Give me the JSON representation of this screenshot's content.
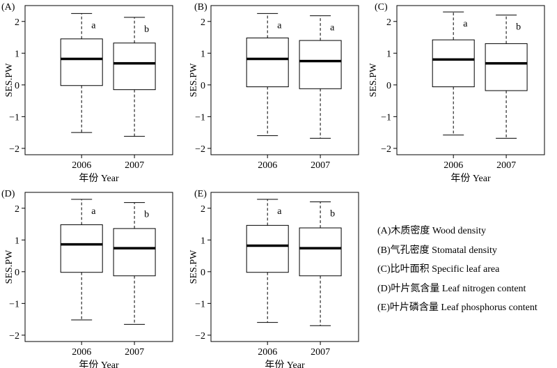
{
  "figure": {
    "legend": [
      "(A)木质密度 Wood density",
      "(B)气孔密度 Stomatal density",
      "(C)比叶面积  Specific leaf area",
      "(D)叶片氮含量 Leaf nitrogen content",
      "(E)叶片磷含量 Leaf phosphorus content"
    ]
  },
  "chart_data": [
    {
      "type": "box",
      "panel_label": "(A)",
      "ylabel": "SES.PW",
      "xlabel": "年份 Year",
      "categories": [
        "2006",
        "2007"
      ],
      "ylim": [
        -2.2,
        2.5
      ],
      "yticks": [
        -2,
        -1,
        0,
        1,
        2
      ],
      "boxes": [
        {
          "category": "2006",
          "whisker_low": -1.5,
          "q1": -0.02,
          "median": 0.82,
          "q3": 1.45,
          "whisker_high": 2.25,
          "letter": "a"
        },
        {
          "category": "2007",
          "whisker_low": -1.62,
          "q1": -0.15,
          "median": 0.68,
          "q3": 1.32,
          "whisker_high": 2.13,
          "letter": "b"
        }
      ]
    },
    {
      "type": "box",
      "panel_label": "(B)",
      "ylabel": "SES.PW",
      "xlabel": "",
      "categories": [
        "2006",
        "2007"
      ],
      "ylim": [
        -2.2,
        2.5
      ],
      "yticks": [
        -2,
        -1,
        0,
        1,
        2
      ],
      "boxes": [
        {
          "category": "2006",
          "whisker_low": -1.6,
          "q1": -0.06,
          "median": 0.82,
          "q3": 1.48,
          "whisker_high": 2.25,
          "letter": "a"
        },
        {
          "category": "2007",
          "whisker_low": -1.68,
          "q1": -0.12,
          "median": 0.75,
          "q3": 1.4,
          "whisker_high": 2.18,
          "letter": "a"
        }
      ]
    },
    {
      "type": "box",
      "panel_label": "(C)",
      "ylabel": "SES.PW",
      "xlabel": "年份 Year",
      "categories": [
        "2006",
        "2007"
      ],
      "ylim": [
        -2.2,
        2.5
      ],
      "yticks": [
        -2,
        -1,
        0,
        1,
        2
      ],
      "boxes": [
        {
          "category": "2006",
          "whisker_low": -1.58,
          "q1": -0.06,
          "median": 0.8,
          "q3": 1.42,
          "whisker_high": 2.3,
          "letter": "a"
        },
        {
          "category": "2007",
          "whisker_low": -1.68,
          "q1": -0.18,
          "median": 0.68,
          "q3": 1.3,
          "whisker_high": 2.2,
          "letter": "b"
        }
      ]
    },
    {
      "type": "box",
      "panel_label": "(D)",
      "ylabel": "SES.PW",
      "xlabel": "年份 Year",
      "categories": [
        "2006",
        "2007"
      ],
      "ylim": [
        -2.2,
        2.5
      ],
      "yticks": [
        -2,
        -1,
        0,
        1,
        2
      ],
      "boxes": [
        {
          "category": "2006",
          "whisker_low": -1.52,
          "q1": -0.02,
          "median": 0.86,
          "q3": 1.48,
          "whisker_high": 2.28,
          "letter": "a"
        },
        {
          "category": "2007",
          "whisker_low": -1.66,
          "q1": -0.13,
          "median": 0.74,
          "q3": 1.36,
          "whisker_high": 2.18,
          "letter": "b"
        }
      ]
    },
    {
      "type": "box",
      "panel_label": "(E)",
      "ylabel": "SES.PW",
      "xlabel": "年份 Year",
      "categories": [
        "2006",
        "2007"
      ],
      "ylim": [
        -2.2,
        2.5
      ],
      "yticks": [
        -2,
        -1,
        0,
        1,
        2
      ],
      "boxes": [
        {
          "category": "2006",
          "whisker_low": -1.6,
          "q1": -0.02,
          "median": 0.82,
          "q3": 1.46,
          "whisker_high": 2.28,
          "letter": "a"
        },
        {
          "category": "2007",
          "whisker_low": -1.7,
          "q1": -0.13,
          "median": 0.74,
          "q3": 1.38,
          "whisker_high": 2.2,
          "letter": "b"
        }
      ]
    }
  ]
}
